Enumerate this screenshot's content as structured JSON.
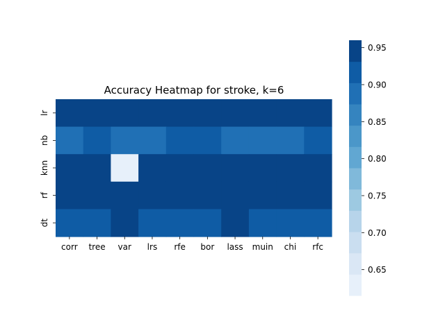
{
  "chart_data": {
    "type": "heatmap",
    "title": "Accuracy Heatmap for stroke, k=6",
    "xlabel": "",
    "ylabel": "",
    "x_categories": [
      "corr",
      "tree",
      "var",
      "lrs",
      "rfe",
      "bor",
      "lass",
      "muin",
      "chi",
      "rfc"
    ],
    "y_categories": [
      "lr",
      "nb",
      "knn",
      "rf",
      "dt"
    ],
    "values": [
      [
        0.955,
        0.955,
        0.955,
        0.955,
        0.955,
        0.955,
        0.955,
        0.955,
        0.955,
        0.955
      ],
      [
        0.885,
        0.915,
        0.885,
        0.885,
        0.905,
        0.905,
        0.885,
        0.885,
        0.885,
        0.915
      ],
      [
        0.955,
        0.955,
        0.625,
        0.955,
        0.955,
        0.955,
        0.955,
        0.955,
        0.955,
        0.955
      ],
      [
        0.955,
        0.955,
        0.955,
        0.955,
        0.955,
        0.955,
        0.955,
        0.955,
        0.955,
        0.955
      ],
      [
        0.915,
        0.915,
        0.955,
        0.915,
        0.915,
        0.915,
        0.955,
        0.915,
        0.915,
        0.915
      ]
    ],
    "colorbar": {
      "range": [
        0.615,
        0.96
      ],
      "ticks": [
        "0.65",
        "0.70",
        "0.75",
        "0.80",
        "0.85",
        "0.90",
        "0.95"
      ],
      "tick_values": [
        0.65,
        0.7,
        0.75,
        0.8,
        0.85,
        0.9,
        0.95
      ],
      "colors": [
        "#e7f0fa",
        "#dae7f5",
        "#cadef0",
        "#b7d4ea",
        "#9dc9e1",
        "#80b9da",
        "#61a7d2",
        "#4b97c9",
        "#3584bf",
        "#2070b5",
        "#0f5ca5",
        "#084487"
      ]
    }
  }
}
